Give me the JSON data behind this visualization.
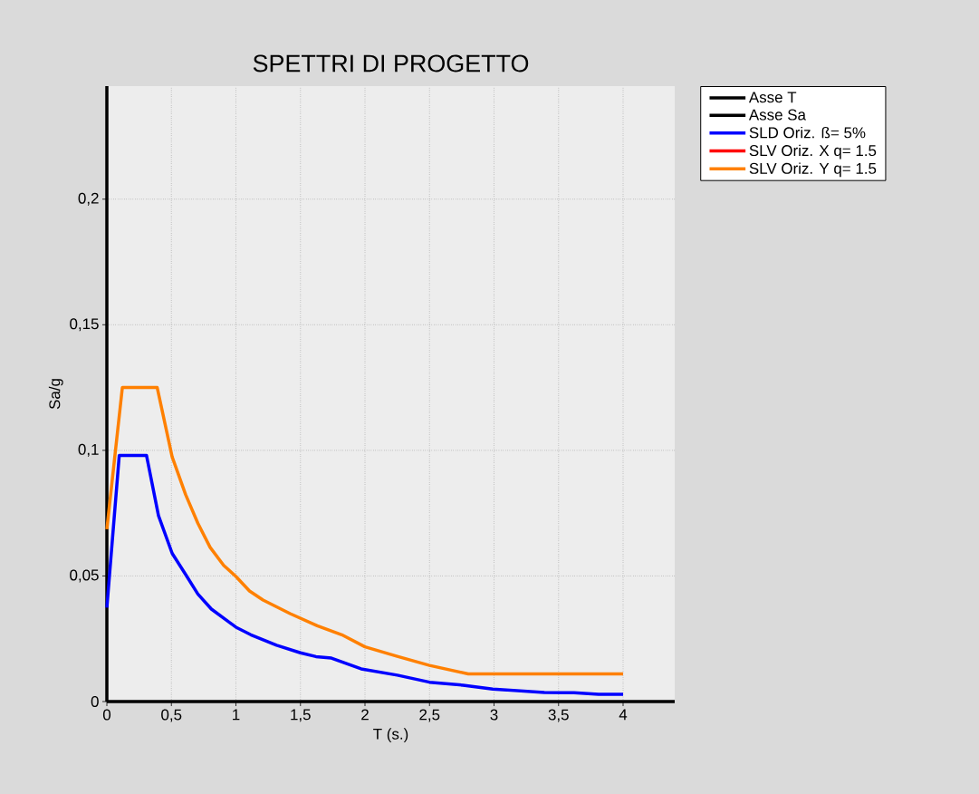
{
  "chart_data": {
    "type": "line",
    "title": "SPETTRI DI PROGETTO",
    "xlabel": "T (s.)",
    "ylabel": "Sa/g",
    "xlim": [
      0,
      4.4
    ],
    "ylim": [
      0,
      0.245
    ],
    "xticks": [
      0,
      {
        "value": 0.5,
        "label": "0,5"
      },
      1,
      {
        "value": 1.5,
        "label": "1,5"
      },
      2,
      {
        "value": 2.5,
        "label": "2,5"
      },
      3,
      {
        "value": 3.5,
        "label": "3,5"
      },
      4
    ],
    "yticks": [
      0,
      {
        "value": 0.05,
        "label": "0,05"
      },
      {
        "value": 0.1,
        "label": "0,1"
      },
      {
        "value": 0.15,
        "label": "0,15"
      },
      {
        "value": 0.2,
        "label": "0,2"
      }
    ],
    "grid": true,
    "legend": "top right",
    "line_style": "solid",
    "series": [
      {
        "name": "Asse T",
        "color": "#000000",
        "x": [
          0,
          4.4
        ],
        "values": [
          0,
          0
        ]
      },
      {
        "name": "Asse Sa",
        "color": "#000000",
        "x": [
          0,
          0
        ],
        "values": [
          0,
          0.245
        ]
      },
      {
        "name": "SLD Oriz. ß= 5%",
        "color": "#0000ff",
        "x": [
          0,
          0.096,
          0.307,
          0.4,
          0.506,
          0.61,
          0.705,
          0.81,
          1.0,
          1.115,
          1.315,
          1.5,
          1.62,
          1.74,
          1.97,
          2.25,
          2.5,
          2.76,
          2.99,
          3.39,
          3.62,
          3.81,
          4.0
        ],
        "values": [
          0.0374,
          0.098,
          0.098,
          0.074,
          0.059,
          0.0506,
          0.0428,
          0.0368,
          0.0296,
          0.0266,
          0.0224,
          0.0194,
          0.0179,
          0.0173,
          0.013,
          0.0105,
          0.0077,
          0.0065,
          0.005,
          0.0036,
          0.0035,
          0.0029,
          0.0029
        ]
      },
      {
        "name": "SLV Oriz. X q= 1.5",
        "color": "#ff0000",
        "values": [
          null
        ]
      },
      {
        "name": "SLV Oriz. Y q= 1.5",
        "color": "#ff8000",
        "x": [
          0,
          0.12,
          0.39,
          0.506,
          0.61,
          0.705,
          0.8,
          0.905,
          1.0,
          1.105,
          1.21,
          1.42,
          1.63,
          1.82,
          2.0,
          2.25,
          2.5,
          2.8,
          4.0
        ],
        "values": [
          0.0686,
          0.125,
          0.125,
          0.0974,
          0.0824,
          0.071,
          0.0614,
          0.0542,
          0.0498,
          0.044,
          0.0404,
          0.035,
          0.0302,
          0.0266,
          0.0218,
          0.018,
          0.0144,
          0.011,
          0.011
        ]
      }
    ]
  }
}
